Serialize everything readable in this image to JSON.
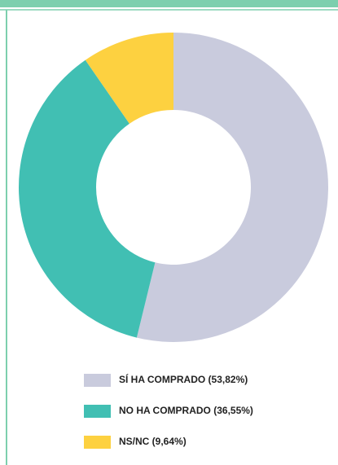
{
  "chart_data": {
    "type": "donut",
    "categories": [
      "SÍ HA COMPRADO (53,82%)",
      "NO HA COMPRADO (36,55%)",
      "NS/NC (9,64%)"
    ],
    "values": [
      53.82,
      36.55,
      9.64
    ],
    "colors": [
      "#c9cbdd",
      "#41bfb3",
      "#fdd140"
    ]
  }
}
